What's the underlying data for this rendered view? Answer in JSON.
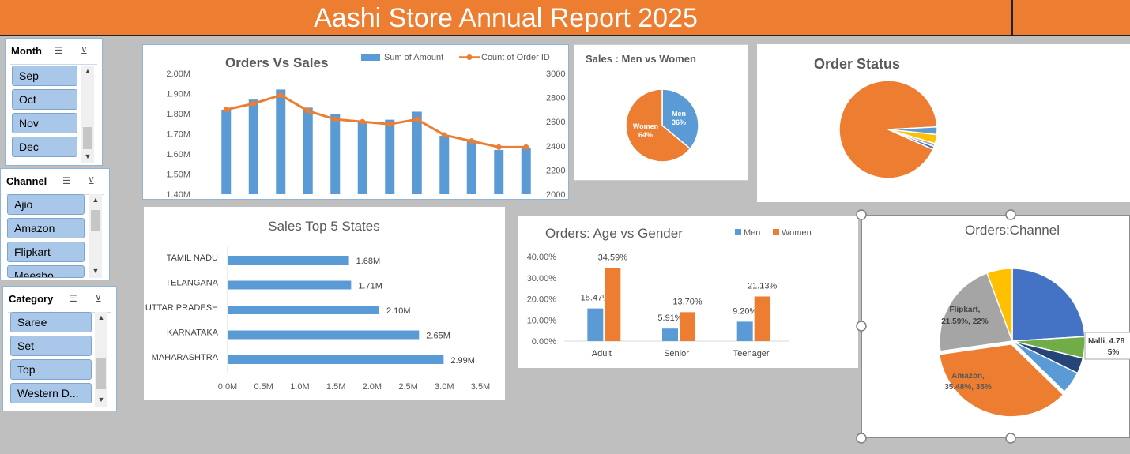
{
  "report_title": "Aashi Store Annual Report 2025",
  "slicers": {
    "month": {
      "title": "Month",
      "items": [
        "Sep",
        "Oct",
        "Nov",
        "Dec"
      ]
    },
    "channel": {
      "title": "Channel",
      "items": [
        "Ajio",
        "Amazon",
        "Flipkart",
        "Meesho"
      ]
    },
    "category": {
      "title": "Category",
      "items": [
        "Saree",
        "Set",
        "Top",
        "Western D..."
      ]
    }
  },
  "chart_data": [
    {
      "id": "orders_vs_sales",
      "type": "bar",
      "title": "Orders Vs Sales",
      "series": [
        {
          "name": "Sum of Amount",
          "values": [
            1.82,
            1.87,
            1.92,
            1.83,
            1.8,
            1.76,
            1.77,
            1.81,
            1.69,
            1.67,
            1.62,
            1.63
          ]
        },
        {
          "name": "Count of Order ID",
          "values": [
            2700,
            2750,
            2820,
            2690,
            2620,
            2600,
            2580,
            2620,
            2490,
            2440,
            2390,
            2390
          ]
        }
      ],
      "y_ticks": [
        "2.00M",
        "1.90M",
        "1.80M",
        "1.70M",
        "1.60M",
        "1.50M",
        "1.40M"
      ],
      "y2_ticks": [
        "3000",
        "2800",
        "2600",
        "2400",
        "2200",
        "2000"
      ],
      "ylim": [
        1.4,
        2.0
      ],
      "y2lim": [
        2000,
        3000
      ],
      "colors": {
        "bar": "#5b9bd5",
        "line": "#ed7d31"
      }
    },
    {
      "id": "sales_men_women",
      "type": "pie",
      "title": "Sales : Men vs Women",
      "slices": [
        {
          "label": "Men",
          "percent_label": "36%",
          "value": 36,
          "color": "#5b9bd5"
        },
        {
          "label": "Women",
          "percent_label": "64%",
          "value": 64,
          "color": "#ed7d31"
        }
      ]
    },
    {
      "id": "order_status",
      "type": "pie",
      "title": "Order Status",
      "slices": [
        {
          "value": 92.5,
          "color": "#ed7d31"
        },
        {
          "value": 2.5,
          "color": "#5b9bd5"
        },
        {
          "value": 3.0,
          "color": "#ffc000"
        },
        {
          "value": 1.0,
          "color": "#a5a5a5"
        },
        {
          "value": 1.0,
          "color": "#4472c4"
        }
      ]
    },
    {
      "id": "top5_states",
      "type": "bar",
      "orientation": "horizontal",
      "title": "Sales Top 5 States",
      "categories": [
        "TAMIL NADU",
        "TELANGANA",
        "UTTAR PRADESH",
        "KARNATAKA",
        "MAHARASHTRA"
      ],
      "values": [
        1.68,
        1.71,
        2.1,
        2.65,
        2.99
      ],
      "value_labels": [
        "1.68M",
        "1.71M",
        "2.10M",
        "2.65M",
        "2.99M"
      ],
      "x_ticks": [
        "0.0M",
        "0.5M",
        "1.0M",
        "1.5M",
        "2.0M",
        "2.5M",
        "3.0M",
        "3.5M"
      ],
      "xlim": [
        0,
        3.5
      ],
      "colors": {
        "bar": "#5b9bd5"
      }
    },
    {
      "id": "age_vs_gender",
      "type": "bar",
      "title": "Orders: Age vs Gender",
      "categories": [
        "Adult",
        "Senior",
        "Teenager"
      ],
      "series": [
        {
          "name": "Men",
          "values": [
            15.47,
            5.91,
            9.2
          ],
          "labels": [
            "15.47%",
            "5.91%",
            "9.20%"
          ],
          "color": "#5b9bd5"
        },
        {
          "name": "Women",
          "values": [
            34.59,
            13.7,
            21.13
          ],
          "labels": [
            "34.59%",
            "13.70%",
            "21.13%"
          ],
          "color": "#ed7d31"
        }
      ],
      "y_ticks": [
        "40.00%",
        "30.00%",
        "20.00%",
        "10.00%",
        "0.00%"
      ],
      "ylim": [
        0,
        40
      ]
    },
    {
      "id": "orders_channel",
      "type": "pie",
      "title": "Orders:Channel",
      "slices": [
        {
          "value": 24.0,
          "color": "#4472c4"
        },
        {
          "value": 4.78,
          "color": "#70ad47",
          "label_line1": "Nalli, 4.78",
          "label_line2": "5%"
        },
        {
          "value": 3.5,
          "color": "#264478"
        },
        {
          "value": 5.0,
          "color": "#5b9bd5"
        },
        {
          "value": 35.48,
          "color": "#ed7d31",
          "label_line1": "Amazon,",
          "label_line2": "35.48%, 35%"
        },
        {
          "value": 21.59,
          "color": "#a5a5a5",
          "label_line1": "Flipkart,",
          "label_line2": "21.59%, 22%"
        },
        {
          "value": 5.65,
          "color": "#ffc000"
        }
      ]
    }
  ]
}
